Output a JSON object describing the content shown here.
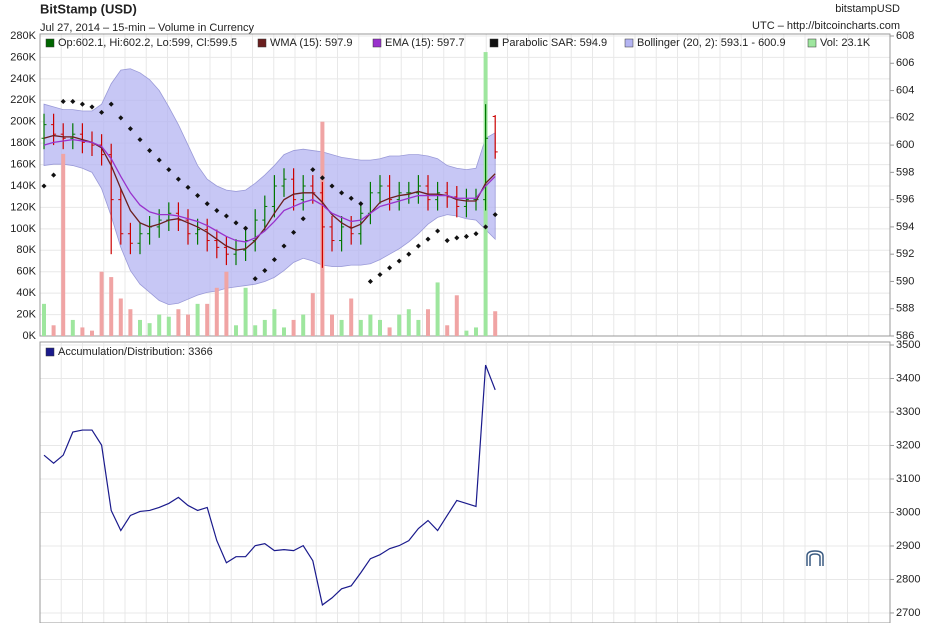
{
  "chart_data": [
    {
      "type": "ohlc",
      "title": "BitStamp (USD)",
      "subtitle": "Jul 27, 2014 – 15-min – Volume in Currency",
      "symbol": "bitstampUSD",
      "source": "UTC – http://bitcoincharts.com",
      "ohlc": {
        "name": "Op:602.1, Hi:602.2, Lo:599, Cl:599.5",
        "color": "#006600",
        "up_color": "#007700",
        "down_color": "#cc0000",
        "open": [
          600.5,
          601.5,
          600.8,
          600.5,
          600.8,
          600.2,
          600.0,
          599.3,
          596.0,
          593.5,
          592.8,
          593.5,
          594.0,
          594.5,
          595.0,
          594.5,
          593.5,
          593.8,
          593.0,
          592.5,
          592.0,
          592.3,
          593.0,
          594.5,
          595.5,
          597.0,
          597.5,
          596.0,
          597.0,
          596.5,
          594.0,
          593.0,
          594.0,
          593.5,
          595.0,
          596.5,
          597.0,
          596.0,
          596.5,
          596.5,
          597.0,
          596.0,
          596.5,
          596.2,
          595.5,
          596.0,
          596.0,
          602.1
        ],
        "high": [
          602.3,
          602.3,
          601.6,
          601.6,
          601.6,
          601.0,
          600.8,
          600.1,
          596.8,
          594.3,
          594.3,
          594.8,
          595.3,
          595.8,
          595.8,
          595.3,
          594.6,
          594.6,
          593.8,
          593.3,
          593.1,
          593.8,
          595.3,
          596.3,
          597.8,
          598.3,
          598.3,
          597.8,
          597.8,
          597.3,
          594.8,
          594.8,
          594.8,
          595.8,
          597.3,
          597.8,
          597.8,
          597.3,
          597.3,
          597.8,
          597.8,
          597.3,
          597.3,
          597.0,
          596.8,
          596.8,
          603.0,
          602.2
        ],
        "low": [
          599.7,
          600.0,
          599.7,
          599.7,
          599.4,
          599.2,
          598.5,
          592.0,
          592.7,
          592.0,
          592.0,
          592.7,
          593.2,
          593.7,
          593.7,
          592.7,
          592.7,
          592.2,
          591.7,
          591.2,
          591.2,
          591.5,
          592.2,
          593.7,
          594.7,
          596.2,
          595.2,
          595.2,
          595.7,
          591.0,
          592.2,
          592.2,
          592.7,
          592.7,
          594.2,
          595.7,
          595.2,
          595.2,
          595.7,
          595.7,
          595.2,
          595.2,
          595.4,
          594.7,
          594.7,
          595.2,
          595.2,
          599.0
        ],
        "close": [
          601.5,
          600.8,
          600.5,
          600.8,
          600.2,
          600.0,
          599.3,
          596.0,
          593.5,
          592.8,
          593.5,
          594.0,
          594.5,
          595.0,
          594.5,
          593.5,
          593.8,
          593.0,
          592.5,
          592.0,
          592.3,
          593.0,
          594.5,
          595.5,
          597.0,
          597.5,
          596.0,
          597.0,
          596.5,
          594.0,
          593.0,
          594.0,
          593.5,
          595.0,
          596.5,
          597.0,
          596.0,
          596.5,
          596.5,
          597.0,
          596.0,
          596.5,
          596.2,
          595.5,
          596.0,
          596.0,
          600.5,
          599.5
        ]
      },
      "series": [
        {
          "name": "WMA (15): 597.9",
          "type": "line",
          "color": "#6b1f1f",
          "values": [
            600.5,
            600.7,
            600.6,
            600.6,
            600.4,
            600.2,
            599.8,
            598.5,
            596.8,
            595.2,
            594.3,
            594.0,
            594.2,
            594.5,
            594.6,
            594.3,
            594.0,
            593.6,
            593.1,
            592.6,
            592.3,
            592.4,
            593.0,
            593.9,
            595.0,
            596.0,
            596.4,
            596.5,
            596.5,
            595.8,
            594.9,
            594.3,
            593.9,
            594.2,
            595.0,
            595.8,
            596.1,
            596.3,
            596.4,
            596.6,
            596.4,
            596.4,
            596.3,
            596.0,
            595.9,
            595.9,
            597.2,
            597.9
          ]
        },
        {
          "name": "EMA (15): 597.7",
          "type": "line",
          "color": "#9932cc",
          "values": [
            600.0,
            600.2,
            600.3,
            600.4,
            600.3,
            600.2,
            599.9,
            599.0,
            597.7,
            596.5,
            595.6,
            595.1,
            594.9,
            594.9,
            594.8,
            594.6,
            594.4,
            594.1,
            593.7,
            593.3,
            593.0,
            592.9,
            593.2,
            593.7,
            594.4,
            595.2,
            595.5,
            595.8,
            596.0,
            595.6,
            595.0,
            594.7,
            594.4,
            594.5,
            595.0,
            595.5,
            595.7,
            595.9,
            596.1,
            596.3,
            596.3,
            596.3,
            596.3,
            596.1,
            596.1,
            596.1,
            597.0,
            597.7
          ]
        },
        {
          "name": "Parabolic SAR: 594.9",
          "type": "dots",
          "color": "#111111",
          "values": [
            597.0,
            597.8,
            603.2,
            603.2,
            603.0,
            602.8,
            602.4,
            603.0,
            602.0,
            601.2,
            600.4,
            599.6,
            598.9,
            598.2,
            597.5,
            596.9,
            596.3,
            595.7,
            595.2,
            594.8,
            594.3,
            593.9,
            590.2,
            590.8,
            591.6,
            592.6,
            593.6,
            594.6,
            598.2,
            597.6,
            597.0,
            596.5,
            596.1,
            595.7,
            590.0,
            590.5,
            591.0,
            591.5,
            592.0,
            592.6,
            593.1,
            593.7,
            593.0,
            593.2,
            593.3,
            593.5,
            594.0,
            594.9
          ]
        },
        {
          "name": "Bollinger (20, 2): 593.1 - 600.9",
          "type": "band",
          "color": "#b4b4f2",
          "upper": [
            603.0,
            602.8,
            602.6,
            602.6,
            602.5,
            602.5,
            603.0,
            604.5,
            605.5,
            605.6,
            605.3,
            604.8,
            604.0,
            602.8,
            601.5,
            600.0,
            598.5,
            597.5,
            597.0,
            596.7,
            596.6,
            596.7,
            597.2,
            597.8,
            598.5,
            599.3,
            599.6,
            599.7,
            599.6,
            599.5,
            599.3,
            599.1,
            599.0,
            598.9,
            598.9,
            599.0,
            599.2,
            599.2,
            599.3,
            599.3,
            599.2,
            599.0,
            598.5,
            598.3,
            598.2,
            598.3,
            600.5,
            600.9
          ],
          "lower": [
            598.5,
            598.6,
            598.6,
            598.5,
            598.3,
            598.0,
            596.8,
            594.8,
            592.5,
            590.8,
            589.8,
            589.2,
            588.6,
            588.3,
            588.4,
            588.7,
            589.0,
            589.2,
            589.3,
            589.5,
            589.6,
            589.7,
            589.8,
            590.0,
            590.3,
            590.8,
            591.4,
            591.7,
            591.5,
            591.2,
            591.1,
            591.1,
            591.2,
            591.2,
            591.3,
            591.6,
            592.0,
            592.4,
            592.9,
            593.5,
            594.2,
            594.7,
            594.9,
            594.8,
            594.6,
            594.5,
            593.8,
            593.1
          ]
        },
        {
          "name": "Vol: 23.1K",
          "type": "bar",
          "axis": "y2",
          "color": "#9ee69e",
          "down_color": "#f0a4a4",
          "values": [
            30000,
            10000,
            170000,
            15000,
            8000,
            5000,
            60000,
            55000,
            35000,
            25000,
            15000,
            12000,
            20000,
            18000,
            25000,
            20000,
            30000,
            30000,
            45000,
            60000,
            10000,
            45000,
            10000,
            15000,
            25000,
            8000,
            15000,
            20000,
            40000,
            200000,
            20000,
            15000,
            35000,
            15000,
            20000,
            15000,
            8000,
            20000,
            25000,
            15000,
            25000,
            50000,
            10000,
            38000,
            5000,
            8000,
            265000,
            23100
          ]
        }
      ],
      "ylim": [
        586,
        608
      ],
      "yticks": [
        586,
        588,
        590,
        592,
        594,
        596,
        598,
        600,
        602,
        604,
        606,
        608
      ],
      "y2lim": [
        0,
        280000
      ],
      "y2ticks": [
        {
          "value": 0,
          "label": "0K"
        },
        {
          "value": 20000,
          "label": "20K"
        },
        {
          "value": 40000,
          "label": "40K"
        },
        {
          "value": 60000,
          "label": "60K"
        },
        {
          "value": 80000,
          "label": "80K"
        },
        {
          "value": 100000,
          "label": "100K"
        },
        {
          "value": 120000,
          "label": "120K"
        },
        {
          "value": 140000,
          "label": "140K"
        },
        {
          "value": 160000,
          "label": "160K"
        },
        {
          "value": 180000,
          "label": "180K"
        },
        {
          "value": 200000,
          "label": "200K"
        },
        {
          "value": 220000,
          "label": "220K"
        },
        {
          "value": 240000,
          "label": "240K"
        },
        {
          "value": 260000,
          "label": "260K"
        },
        {
          "value": 280000,
          "label": "280K"
        }
      ],
      "grid": true
    },
    {
      "type": "line",
      "series": [
        {
          "name": "Accumulation/Distribution: 3366",
          "color": "#1a1a8c",
          "values": [
            3171,
            3147,
            3171,
            3240,
            3246,
            3246,
            3201,
            3006,
            2946,
            2991,
            3003,
            3006,
            3015,
            3027,
            3045,
            3021,
            3006,
            3015,
            2916,
            2850,
            2868,
            2868,
            2901,
            2907,
            2886,
            2889,
            2886,
            2901,
            2856,
            2724,
            2745,
            2772,
            2781,
            2820,
            2862,
            2874,
            2892,
            2901,
            2916,
            2952,
            2976,
            2946,
            2991,
            3036,
            3027,
            3018,
            3440,
            3366
          ]
        }
      ],
      "ylim": [
        2670,
        3500
      ],
      "yticks": [
        2700,
        2800,
        2900,
        3000,
        3100,
        3200,
        3300,
        3400,
        3500
      ],
      "grid": true
    }
  ]
}
